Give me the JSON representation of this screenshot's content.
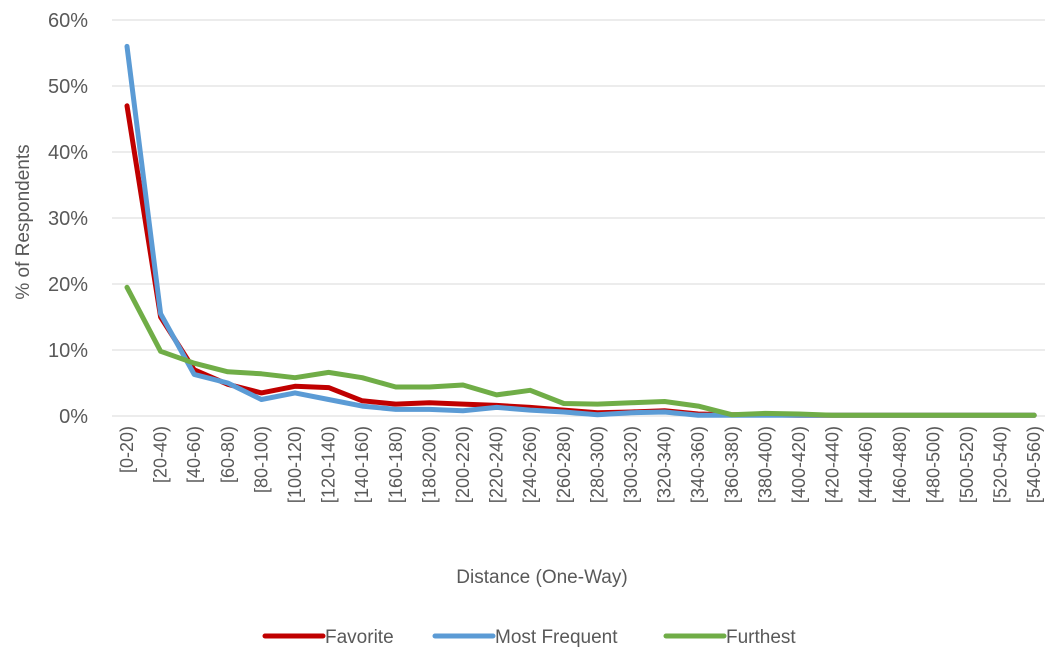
{
  "chart_data": {
    "type": "line",
    "title": "",
    "xlabel": "Distance (One-Way)",
    "ylabel": "% of Respondents",
    "ylim": [
      0,
      60
    ],
    "yticks": [
      "0%",
      "10%",
      "20%",
      "30%",
      "40%",
      "50%",
      "60%"
    ],
    "ytick_values": [
      0,
      10,
      20,
      30,
      40,
      50,
      60
    ],
    "grid": true,
    "legend_position": "bottom",
    "categories": [
      "[0-20)",
      "[20-40)",
      "[40-60)",
      "[60-80)",
      "[80-100)",
      "[100-120)",
      "[120-140)",
      "[140-160)",
      "[160-180)",
      "[180-200)",
      "[200-220)",
      "[220-240)",
      "[240-260)",
      "[260-280)",
      "[280-300)",
      "[300-320)",
      "[320-340)",
      "[340-360)",
      "[360-380)",
      "[380-400)",
      "[400-420)",
      "[420-440)",
      "[440-460)",
      "[460-480)",
      "[480-500)",
      "[500-520)",
      "[520-540)",
      "[540-560)"
    ],
    "series": [
      {
        "name": "Favorite",
        "color": "#c00000",
        "values": [
          47,
          15,
          7,
          4.8,
          3.5,
          4.5,
          4.3,
          2.3,
          1.8,
          2.0,
          1.8,
          1.6,
          1.3,
          0.9,
          0.5,
          0.6,
          0.8,
          0.3,
          0.2,
          0.2,
          0.1,
          0.1,
          0.1,
          0.1,
          0.1,
          0.1,
          0.1,
          0.1
        ]
      },
      {
        "name": "Most Frequent",
        "color": "#5b9bd5",
        "values": [
          56,
          15.5,
          6.3,
          5.0,
          2.5,
          3.5,
          2.5,
          1.5,
          1.0,
          1.0,
          0.8,
          1.3,
          0.9,
          0.6,
          0.2,
          0.5,
          0.6,
          0.1,
          0.1,
          0.1,
          0.1,
          0.1,
          0.1,
          0.1,
          0.1,
          0.1,
          0.1,
          0.1
        ]
      },
      {
        "name": "Furthest",
        "color": "#70ad47",
        "values": [
          19.5,
          9.8,
          8.0,
          6.7,
          6.4,
          5.8,
          6.6,
          5.8,
          4.4,
          4.4,
          4.7,
          3.2,
          3.9,
          1.9,
          1.8,
          2.0,
          2.2,
          1.5,
          0.2,
          0.4,
          0.3,
          0.1,
          0.1,
          0.1,
          0.1,
          0.1,
          0.1,
          0.1
        ]
      }
    ]
  }
}
